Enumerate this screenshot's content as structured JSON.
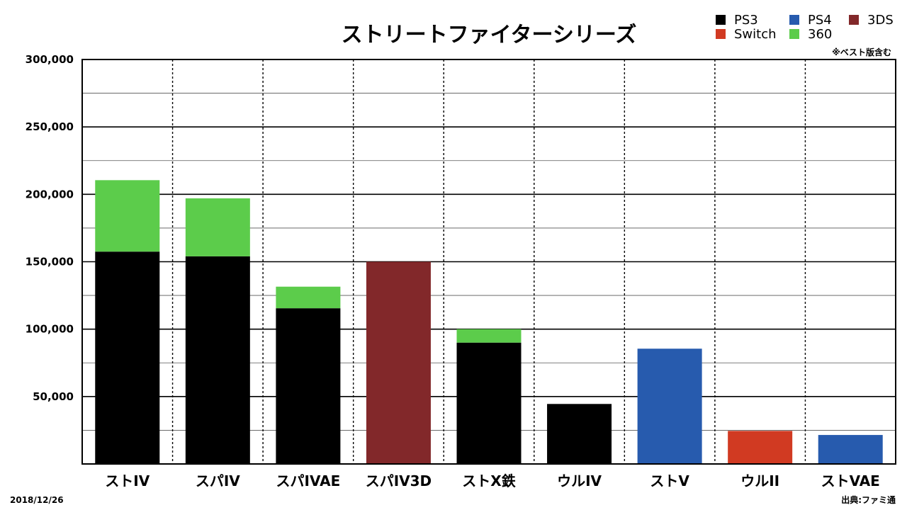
{
  "chart_data": {
    "type": "bar",
    "stacked": true,
    "title": "ストリートファイターシリーズ",
    "note": "※ベスト版含む",
    "date": "2018/12/26",
    "source": "出典:ファミ通",
    "ylim": [
      0,
      300000
    ],
    "yticks": [
      "300,000",
      "250,000",
      "200,000",
      "150,000",
      "100,000",
      "50,000"
    ],
    "categories": [
      "ストIV",
      "スパIV",
      "スパIVAE",
      "スパIV3D",
      "ストX鉄",
      "ウルIV",
      "ストV",
      "ウルII",
      "ストVAE"
    ],
    "series": [
      {
        "name": "PS3",
        "color": "#000000",
        "values": [
          157500,
          154000,
          115500,
          0,
          90000,
          44500,
          0,
          0,
          0
        ]
      },
      {
        "name": "360",
        "color": "#5ccc4b",
        "values": [
          53000,
          43000,
          16000,
          0,
          10000,
          0,
          0,
          0,
          0
        ]
      },
      {
        "name": "3DS",
        "color": "#82282a",
        "values": [
          0,
          0,
          0,
          150000,
          0,
          0,
          0,
          0,
          0
        ]
      },
      {
        "name": "PS4",
        "color": "#275bae",
        "values": [
          0,
          0,
          0,
          0,
          0,
          0,
          85500,
          0,
          21500
        ]
      },
      {
        "name": "Switch",
        "color": "#d13a22",
        "values": [
          0,
          0,
          0,
          0,
          0,
          0,
          0,
          24500,
          0
        ]
      }
    ],
    "legend": [
      {
        "name": "PS3",
        "color": "#000000"
      },
      {
        "name": "PS4",
        "color": "#275bae"
      },
      {
        "name": "3DS",
        "color": "#82282a"
      },
      {
        "name": "Switch",
        "color": "#d13a22"
      },
      {
        "name": "360",
        "color": "#5ccc4b"
      }
    ],
    "grid": true,
    "legend_position": "top-right"
  }
}
